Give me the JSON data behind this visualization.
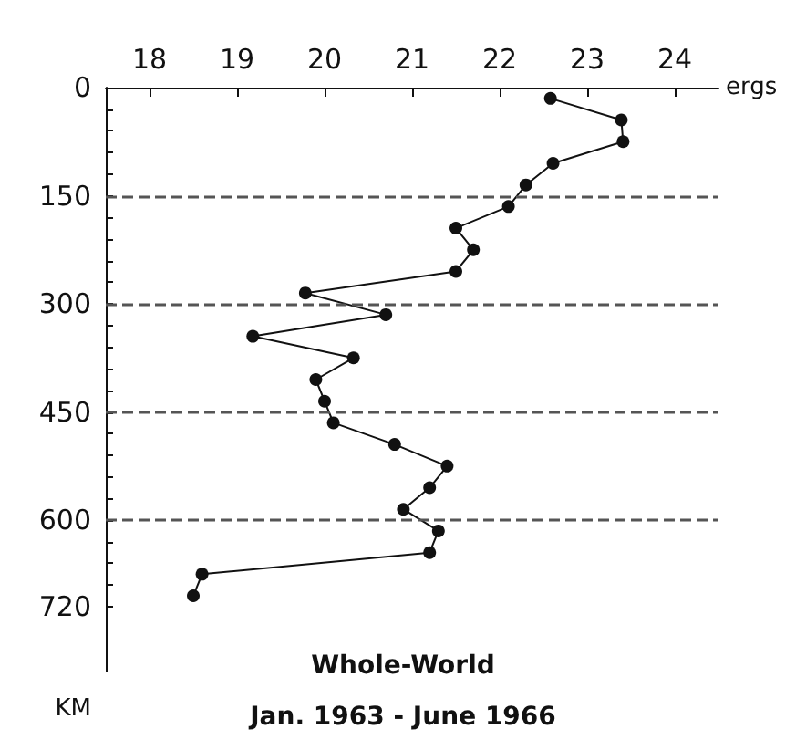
{
  "chart_data": {
    "type": "line",
    "xlabel": "ergs",
    "ylabel": "KM",
    "annotations": [
      "Whole-World",
      "Jan. 1963 - June 1966"
    ],
    "series": [
      {
        "color": "#111111",
        "x": [
          22.58,
          23.39,
          23.41,
          22.61,
          22.3,
          22.1,
          21.5,
          21.7,
          21.5,
          19.78,
          20.7,
          19.18,
          20.33,
          19.9,
          20.0,
          20.1,
          20.8,
          21.4,
          21.2,
          20.9,
          21.3,
          21.2,
          18.6,
          18.5
        ],
        "values": [
          15,
          45,
          75,
          105,
          135,
          165,
          195,
          225,
          255,
          285,
          315,
          345,
          375,
          405,
          435,
          465,
          495,
          525,
          555,
          585,
          615,
          645,
          675,
          705
        ]
      }
    ],
    "xlim": [
      17.5,
      24.5
    ],
    "xticks": [
      18,
      19,
      20,
      21,
      22,
      23,
      24
    ],
    "ylim": [
      810,
      0
    ],
    "yticks": [
      0,
      {
        "value": 30,
        "label": null
      },
      {
        "value": 60,
        "label": null
      },
      {
        "value": 90,
        "label": null
      },
      {
        "value": 120,
        "label": null
      },
      150,
      {
        "value": 180,
        "label": null
      },
      {
        "value": 210,
        "label": null
      },
      {
        "value": 240,
        "label": null
      },
      {
        "value": 270,
        "label": null
      },
      300,
      {
        "value": 330,
        "label": null
      },
      {
        "value": 360,
        "label": null
      },
      {
        "value": 390,
        "label": null
      },
      {
        "value": 420,
        "label": null
      },
      450,
      {
        "value": 480,
        "label": null
      },
      {
        "value": 510,
        "label": null
      },
      {
        "value": 540,
        "label": null
      },
      {
        "value": 570,
        "label": null
      },
      600,
      {
        "value": 630,
        "label": null
      },
      {
        "value": 660,
        "label": null
      },
      {
        "value": 690,
        "label": null
      },
      720
    ],
    "ref_lines": [
      {
        "axis": "y",
        "value": 150,
        "color": "#555555",
        "line_style": "dashed"
      },
      {
        "axis": "y",
        "value": 300,
        "color": "#555555",
        "line_style": "dashed"
      },
      {
        "axis": "y",
        "value": 450,
        "color": "#555555",
        "line_style": "dashed"
      },
      {
        "axis": "y",
        "value": 600,
        "color": "#555555",
        "line_style": "dashed"
      }
    ],
    "marker": "circle",
    "line_style": "solid"
  }
}
